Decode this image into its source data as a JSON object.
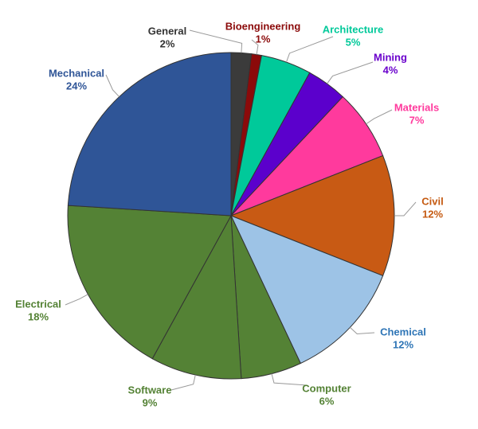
{
  "chart_data": {
    "type": "pie",
    "categories": [
      "General",
      "Bioengineering",
      "Architecture",
      "Mining",
      "Materials",
      "Civil",
      "Chemical",
      "Computer",
      "Software",
      "Electrical",
      "Mechanical"
    ],
    "values": [
      2,
      1,
      5,
      4,
      7,
      12,
      12,
      6,
      9,
      18,
      24
    ],
    "value_labels": [
      "2%",
      "1%",
      "5%",
      "4%",
      "7%",
      "12%",
      "12%",
      "6%",
      "9%",
      "18%",
      "24%"
    ],
    "colors": [
      "#3b3b3b",
      "#8b0a0a",
      "#00c99a",
      "#5b00cc",
      "#ff3a9d",
      "#c85a14",
      "#9dc3e6",
      "#548235",
      "#548235",
      "#548235",
      "#2f5597"
    ],
    "label_colors": [
      "#333333",
      "#8b0a0a",
      "#00c99a",
      "#6a00cc",
      "#ff3a9d",
      "#c55a11",
      "#2e75b6",
      "#548235",
      "#548235",
      "#548235",
      "#2f5597"
    ]
  }
}
